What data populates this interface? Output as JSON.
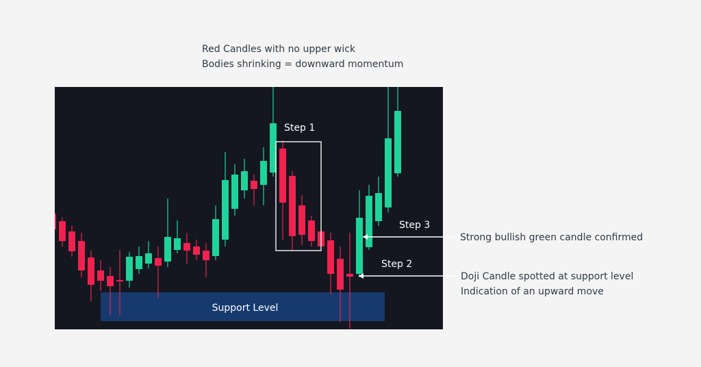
{
  "chart_data": {
    "type": "candlestick",
    "open": [
      169,
      158,
      143,
      129,
      105,
      86,
      78,
      72,
      71,
      88,
      96,
      104,
      99,
      116,
      126,
      121,
      115,
      107,
      131,
      176,
      203,
      217,
      211,
      229,
      264,
      224,
      181,
      159,
      143,
      130,
      103,
      81,
      81,
      120,
      158,
      178,
      228
    ],
    "high": [
      169,
      163,
      151,
      141,
      115,
      101,
      91,
      116,
      113,
      121,
      129,
      121,
      191,
      159,
      141,
      131,
      126,
      181,
      259,
      241,
      249,
      226,
      266,
      354,
      276,
      231,
      196,
      166,
      151,
      141,
      121,
      141,
      203,
      211,
      223,
      354,
      354
    ],
    "low": [
      141,
      121,
      106,
      76,
      41,
      56,
      21,
      21,
      61,
      81,
      89,
      46,
      91,
      111,
      96,
      101,
      76,
      101,
      121,
      166,
      191,
      181,
      181,
      223,
      131,
      116,
      123,
      121,
      116,
      51,
      11,
      1,
      76,
      116,
      151,
      171,
      223
    ],
    "close": [
      146,
      129,
      114,
      86,
      65,
      71,
      63,
      70,
      106,
      107,
      111,
      93,
      135,
      133,
      115,
      109,
      101,
      161,
      218,
      226,
      231,
      205,
      246,
      301,
      185,
      136,
      138,
      129,
      121,
      81,
      58,
      77,
      163,
      195,
      199,
      279,
      319
    ],
    "ylim": [
      0,
      354
    ],
    "up_color": "#1fd49a",
    "down_color": "#f0224f",
    "annotations": {
      "top_note": [
        "Red Candles with no upper wick",
        "Bodies shrinking = downward momentum"
      ],
      "step1": "Step 1",
      "step2": "Step 2",
      "step3": "Step 3",
      "step3_note": "Strong bullish green candle confirmed",
      "step2_note": [
        "Doji Candle spotted at support level",
        "Indication of an upward move"
      ],
      "support": "Support Level"
    }
  }
}
